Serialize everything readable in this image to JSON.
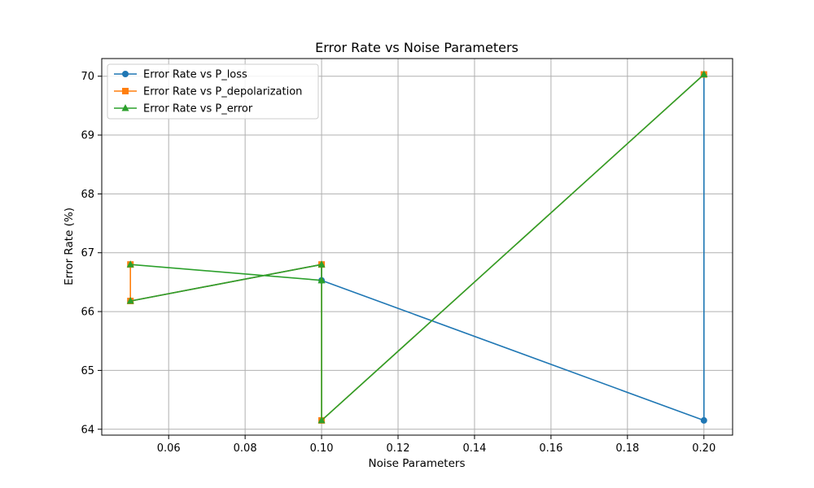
{
  "chart_data": {
    "type": "line",
    "title": "Error Rate vs Noise Parameters",
    "xlabel": "Noise Parameters",
    "ylabel": "Error Rate (%)",
    "xlim": [
      0.0425,
      0.2075
    ],
    "ylim": [
      63.9,
      70.3
    ],
    "xticks": [
      0.06,
      0.08,
      0.1,
      0.12,
      0.14,
      0.16,
      0.18,
      0.2
    ],
    "xtick_labels": [
      "0.06",
      "0.08",
      "0.10",
      "0.12",
      "0.14",
      "0.16",
      "0.18",
      "0.20"
    ],
    "yticks": [
      64,
      65,
      66,
      67,
      68,
      69,
      70
    ],
    "ytick_labels": [
      "64",
      "65",
      "66",
      "67",
      "68",
      "69",
      "70"
    ],
    "grid": true,
    "legend_position": "top-left",
    "series": [
      {
        "name": "Error Rate vs P_loss",
        "color": "#1f77b4",
        "marker": "circle",
        "x": [
          0.05,
          0.1,
          0.1,
          0.2,
          0.2
        ],
        "y": [
          66.18,
          66.8,
          66.53,
          64.15,
          70.03
        ]
      },
      {
        "name": "Error Rate vs P_depolarization",
        "color": "#ff7f0e",
        "marker": "square",
        "x": [
          0.05,
          0.05,
          0.1,
          0.1,
          0.2
        ],
        "y": [
          66.8,
          66.18,
          66.8,
          64.15,
          70.03
        ]
      },
      {
        "name": "Error Rate vs P_error",
        "color": "#2ca02c",
        "marker": "triangle",
        "x": [
          0.05,
          0.1,
          0.1,
          0.05,
          0.1,
          0.1,
          0.2
        ],
        "y": [
          66.18,
          66.8,
          66.53,
          66.8,
          66.53,
          64.15,
          70.03
        ]
      }
    ]
  }
}
